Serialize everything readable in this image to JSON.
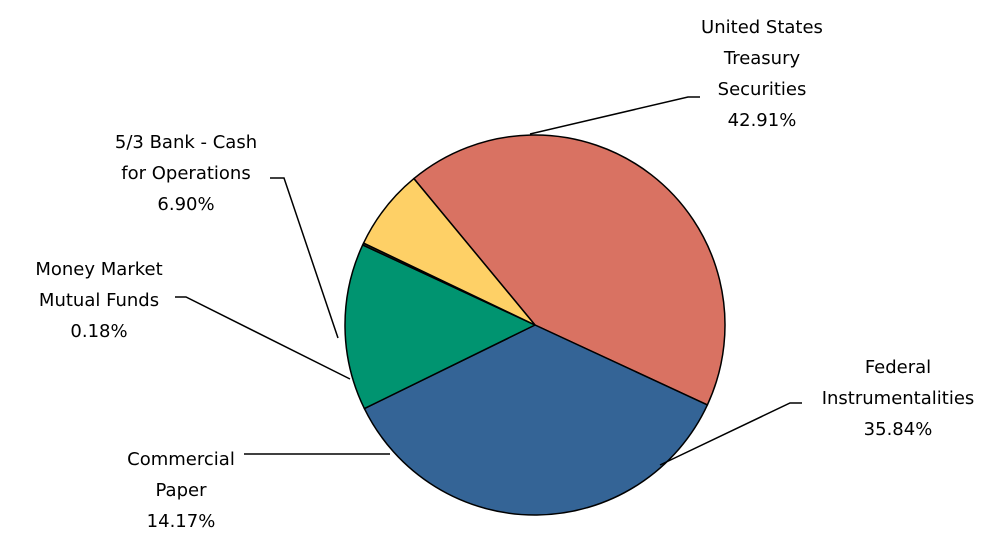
{
  "chart_data": {
    "type": "pie",
    "title": "",
    "slices": [
      {
        "label_lines": [
          "United States",
          "Treasury",
          "Securities"
        ],
        "pct_label": "42.91%",
        "value": 42.91,
        "color": "#D97262"
      },
      {
        "label_lines": [
          "Federal",
          "Instrumentalities"
        ],
        "pct_label": "35.84%",
        "value": 35.84,
        "color": "#346496"
      },
      {
        "label_lines": [
          "Commercial",
          "Paper"
        ],
        "pct_label": "14.17%",
        "value": 14.17,
        "color": "#009470"
      },
      {
        "label_lines": [
          "Money Market",
          "Mutual Funds"
        ],
        "pct_label": "0.18%",
        "value": 0.18,
        "color": "#3A3A1E"
      },
      {
        "label_lines": [
          "5/3 Bank - Cash",
          "for Operations"
        ],
        "pct_label": "6.90%",
        "value": 6.9,
        "color": "#FED066"
      }
    ]
  }
}
